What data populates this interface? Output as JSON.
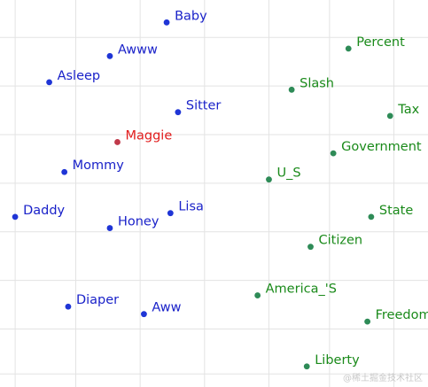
{
  "chart_data": {
    "type": "scatter",
    "title": "",
    "xlabel": "",
    "ylabel": "",
    "grid": true,
    "xlim": [
      -0.4,
      10.9
    ],
    "ylim": [
      -0.35,
      10.0
    ],
    "x_grid": [
      0,
      1.6,
      3.3,
      5.0,
      6.7,
      8.3,
      10.0
    ],
    "y_grid": [
      0,
      1.2,
      2.5,
      3.8,
      5.1,
      6.4,
      7.7,
      9.0
    ],
    "colors": {
      "blue": "#1f35d6",
      "green": "#2e8b57",
      "red": "#c0394a",
      "grid": "#e3e3e3",
      "label_blue": "#1a22c9",
      "label_green": "#1a8a1a",
      "label_red": "#e21c1c"
    },
    "points": [
      {
        "label": "Baby",
        "x": 4.0,
        "y": 9.4,
        "group": "blue"
      },
      {
        "label": "Awww",
        "x": 2.5,
        "y": 8.5,
        "group": "blue"
      },
      {
        "label": "Asleep",
        "x": 0.9,
        "y": 7.8,
        "group": "blue"
      },
      {
        "label": "Sitter",
        "x": 4.3,
        "y": 7.0,
        "group": "blue"
      },
      {
        "label": "Maggie",
        "x": 2.7,
        "y": 6.2,
        "group": "red"
      },
      {
        "label": "Mommy",
        "x": 1.3,
        "y": 5.4,
        "group": "blue"
      },
      {
        "label": "Daddy",
        "x": 0.0,
        "y": 4.2,
        "group": "blue"
      },
      {
        "label": "Honey",
        "x": 2.5,
        "y": 3.9,
        "group": "blue"
      },
      {
        "label": "Lisa",
        "x": 4.1,
        "y": 4.3,
        "group": "blue"
      },
      {
        "label": "Diaper",
        "x": 1.4,
        "y": 1.8,
        "group": "blue"
      },
      {
        "label": "Aww",
        "x": 3.4,
        "y": 1.6,
        "group": "blue"
      },
      {
        "label": "Percent",
        "x": 8.8,
        "y": 8.7,
        "group": "green"
      },
      {
        "label": "Slash",
        "x": 7.3,
        "y": 7.6,
        "group": "green"
      },
      {
        "label": "Tax",
        "x": 9.9,
        "y": 6.9,
        "group": "green"
      },
      {
        "label": "Government",
        "x": 8.4,
        "y": 5.9,
        "group": "green"
      },
      {
        "label": "U_S",
        "x": 6.7,
        "y": 5.2,
        "group": "green"
      },
      {
        "label": "State",
        "x": 9.4,
        "y": 4.2,
        "group": "green"
      },
      {
        "label": "Citizen",
        "x": 7.8,
        "y": 3.4,
        "group": "green"
      },
      {
        "label": "America_'S",
        "x": 6.4,
        "y": 2.1,
        "group": "green"
      },
      {
        "label": "Freedom",
        "x": 9.3,
        "y": 1.4,
        "group": "green"
      },
      {
        "label": "Liberty",
        "x": 7.7,
        "y": 0.2,
        "group": "green"
      }
    ]
  },
  "watermark": "@稀土掘金技术社区"
}
